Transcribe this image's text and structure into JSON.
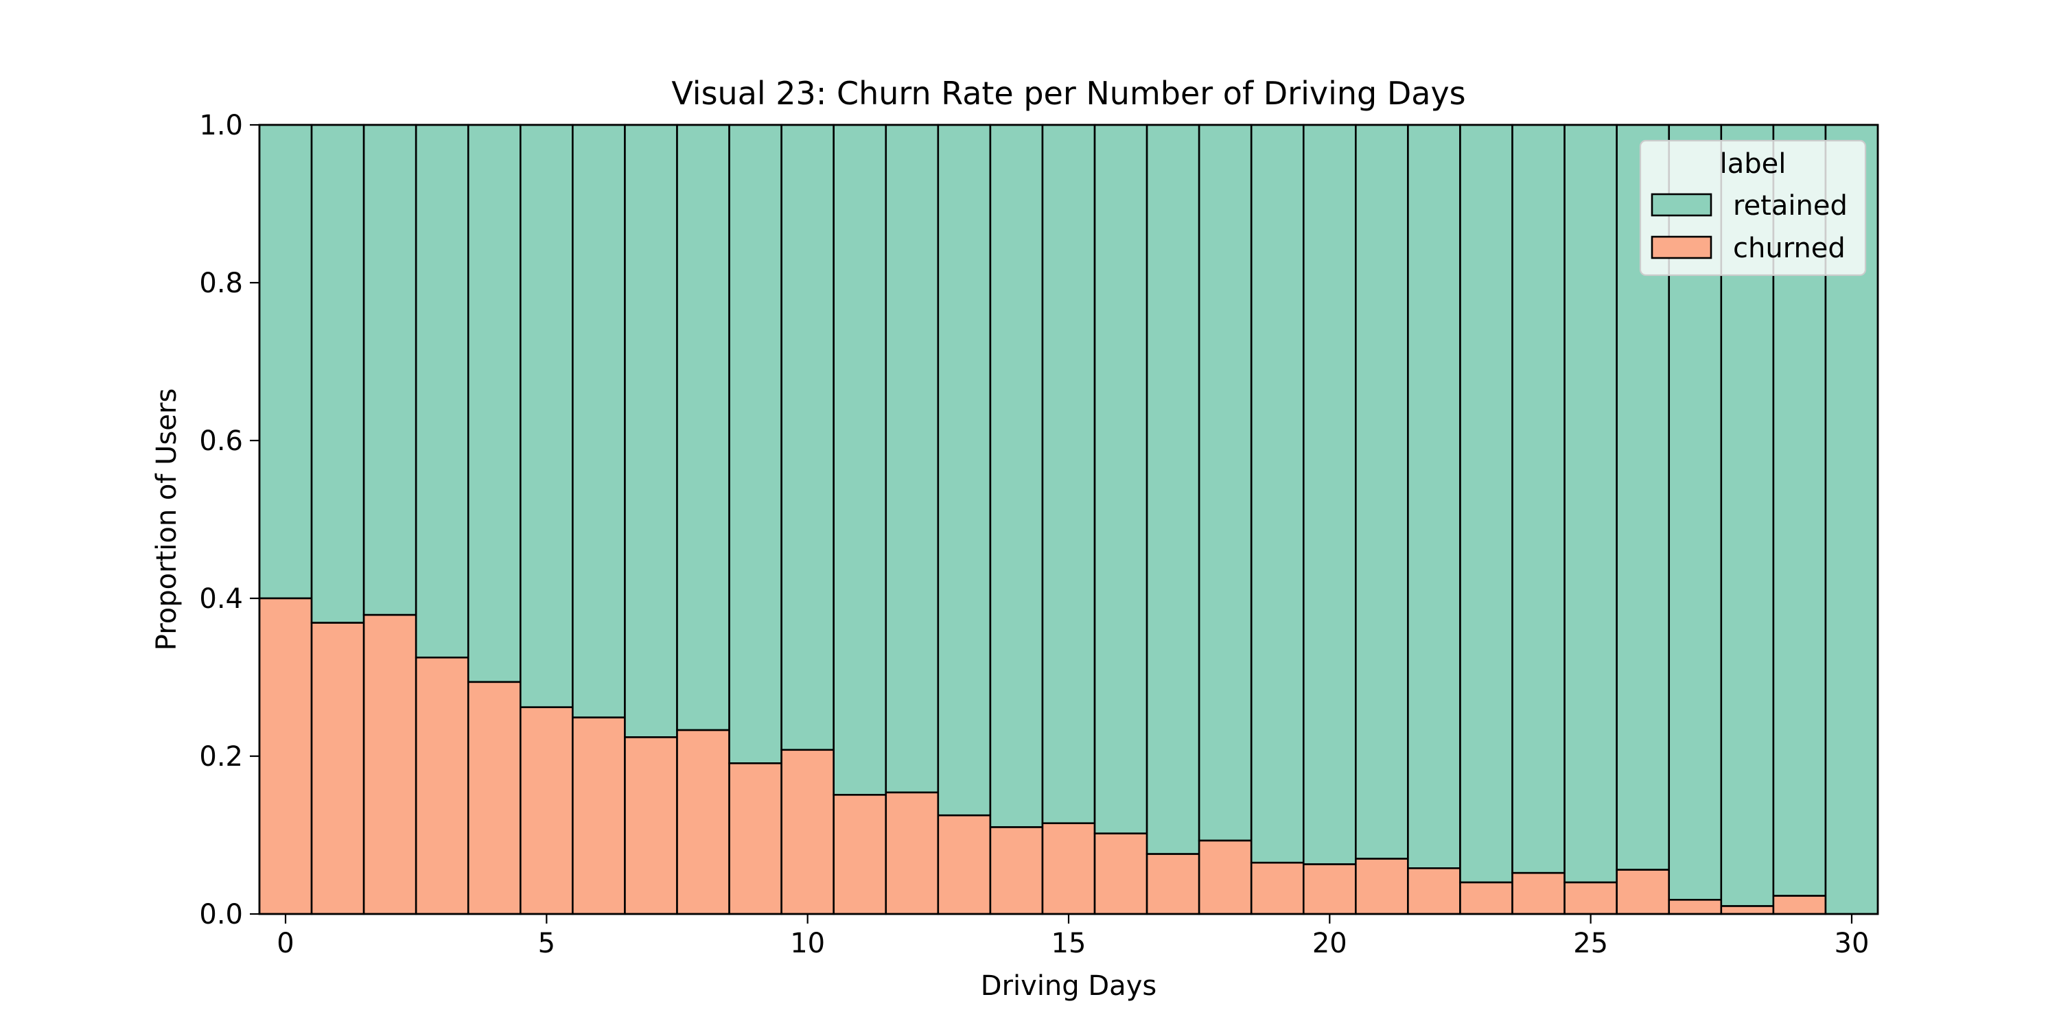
{
  "chart_data": {
    "type": "bar",
    "stacked": true,
    "normalized": true,
    "title": "Visual 23: Churn Rate per Number of Driving Days",
    "xlabel": "Driving Days",
    "ylabel": "Proportion of Users",
    "xlim": [
      -0.5,
      30.5
    ],
    "ylim": [
      0.0,
      1.0
    ],
    "grid": false,
    "x_ticks": [
      0,
      5,
      10,
      15,
      20,
      25,
      30
    ],
    "y_ticks": [
      0.0,
      0.2,
      0.4,
      0.6,
      0.8,
      1.0
    ],
    "x_tick_labels": [
      "0",
      "5",
      "10",
      "15",
      "20",
      "25",
      "30"
    ],
    "y_tick_labels": [
      "0.0",
      "0.2",
      "0.4",
      "0.6",
      "0.8",
      "1.0"
    ],
    "x": [
      0,
      1,
      2,
      3,
      4,
      5,
      6,
      7,
      8,
      9,
      10,
      11,
      12,
      13,
      14,
      15,
      16,
      17,
      18,
      19,
      20,
      21,
      22,
      23,
      24,
      25,
      26,
      27,
      28,
      29,
      30
    ],
    "legend": {
      "title": "label",
      "placement": "top-right",
      "entries": [
        "retained",
        "churned"
      ]
    },
    "series": [
      {
        "name": "churned",
        "color": "#fbab8a",
        "values": [
          0.4,
          0.369,
          0.379,
          0.325,
          0.294,
          0.262,
          0.249,
          0.224,
          0.233,
          0.191,
          0.208,
          0.151,
          0.154,
          0.125,
          0.11,
          0.115,
          0.102,
          0.076,
          0.093,
          0.065,
          0.063,
          0.07,
          0.058,
          0.04,
          0.052,
          0.04,
          0.056,
          0.018,
          0.01,
          0.023,
          0.0
        ]
      },
      {
        "name": "retained",
        "color": "#8dd1bb",
        "values": [
          0.6,
          0.631,
          0.621,
          0.675,
          0.706,
          0.738,
          0.751,
          0.776,
          0.767,
          0.809,
          0.792,
          0.849,
          0.846,
          0.875,
          0.89,
          0.885,
          0.898,
          0.924,
          0.907,
          0.935,
          0.937,
          0.93,
          0.942,
          0.96,
          0.948,
          0.96,
          0.944,
          0.982,
          0.99,
          0.977,
          1.0
        ]
      }
    ]
  }
}
